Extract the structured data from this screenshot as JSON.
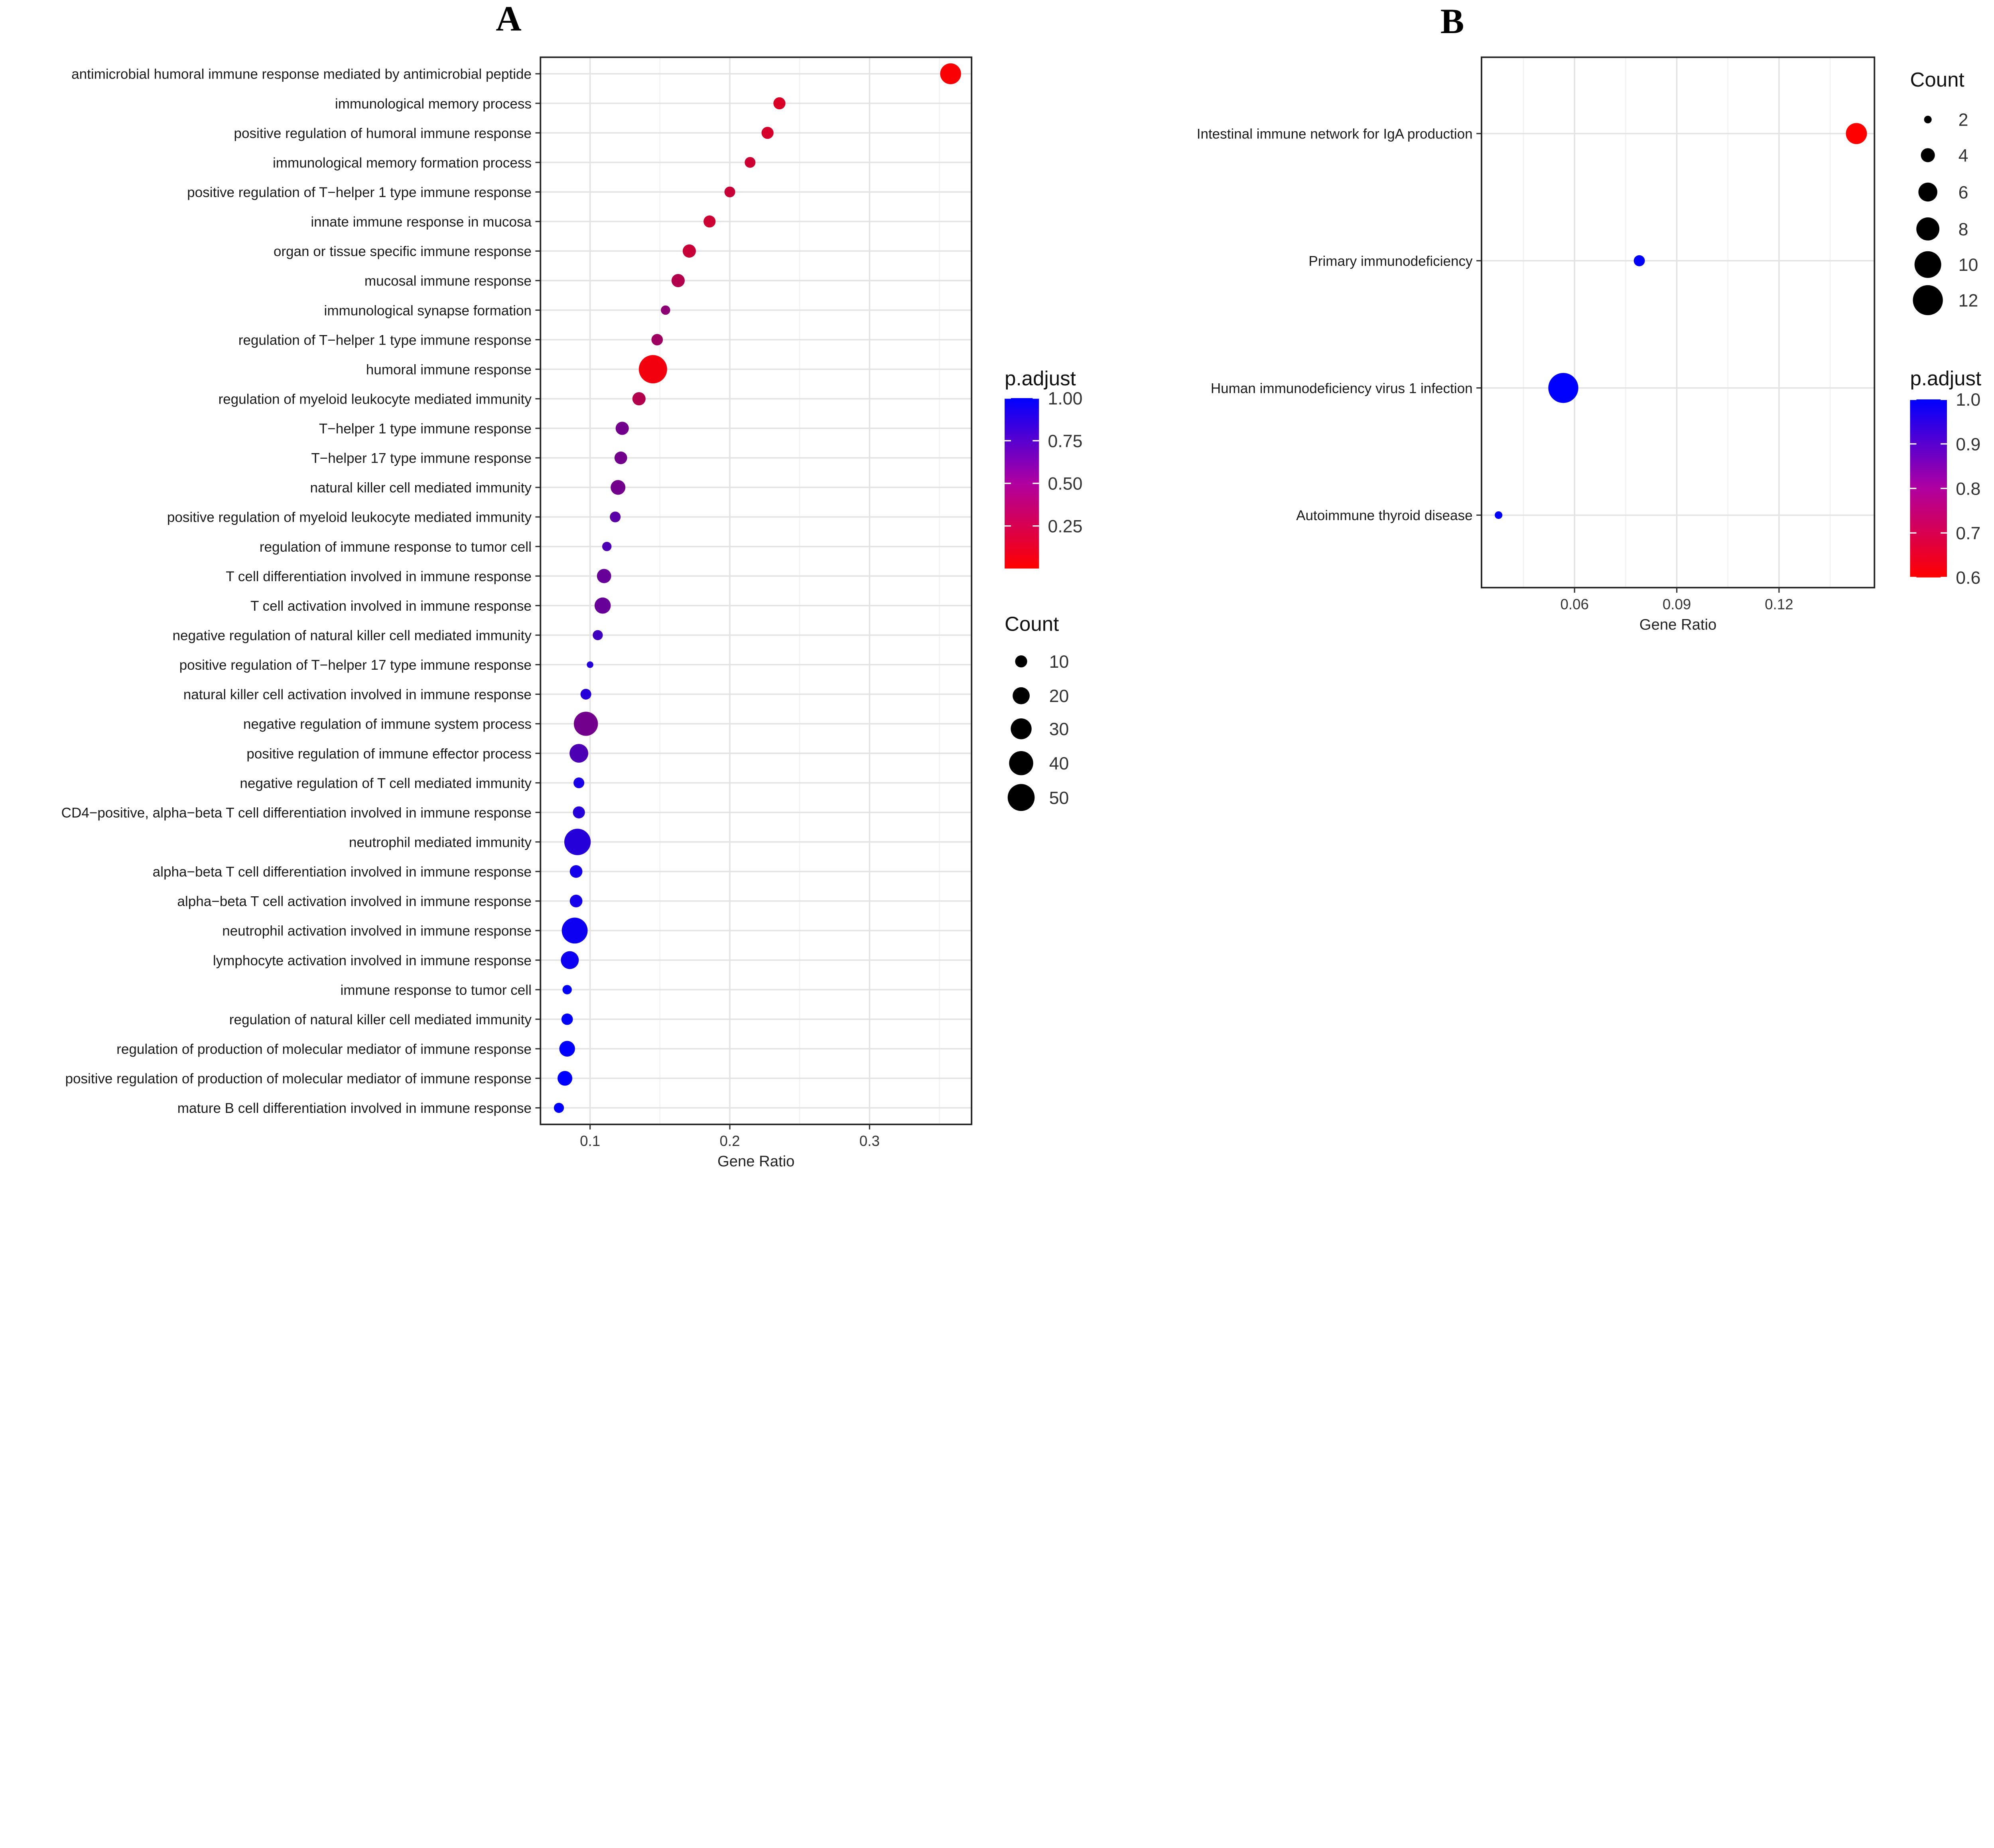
{
  "chart_data": [
    {
      "type": "scatter",
      "panel_label": "A",
      "xlabel": "Gene Ratio",
      "xlim": [
        0.0645,
        0.373
      ],
      "xticks": [
        0.1,
        0.2,
        0.3
      ],
      "xtick_labels": [
        "0.1",
        "0.2",
        "0.3"
      ],
      "grid": true,
      "color_legend": {
        "title": "p.adjust",
        "range": [
          0,
          1
        ],
        "low_color": "#ff0000",
        "high_color": "#0000ff",
        "ticks": [
          0.25,
          0.5,
          0.75,
          1.0
        ],
        "tick_labels": [
          "0.25",
          "0.50",
          "0.75",
          "1.00"
        ]
      },
      "size_legend": {
        "title": "Count",
        "values": [
          10,
          20,
          30,
          40,
          50
        ],
        "labels": [
          "10",
          "20",
          "30",
          "40",
          "50"
        ]
      },
      "legend_placement": "right",
      "points": [
        {
          "term": "antimicrobial humoral immune response mediated by antimicrobial peptide",
          "gene_ratio": 0.358,
          "count": 30,
          "p_adjust": 0.02
        },
        {
          "term": "immunological memory process",
          "gene_ratio": 0.2355,
          "count": 10,
          "p_adjust": 0.15
        },
        {
          "term": "positive regulation of humoral immune response",
          "gene_ratio": 0.227,
          "count": 10,
          "p_adjust": 0.17
        },
        {
          "term": "immunological memory formation process",
          "gene_ratio": 0.2145,
          "count": 8,
          "p_adjust": 0.2
        },
        {
          "term": "positive regulation of T−helper 1 type immune response",
          "gene_ratio": 0.2,
          "count": 8,
          "p_adjust": 0.22
        },
        {
          "term": "innate immune response in mucosa",
          "gene_ratio": 0.1855,
          "count": 10,
          "p_adjust": 0.2
        },
        {
          "term": "organ or tissue specific immune response",
          "gene_ratio": 0.171,
          "count": 12,
          "p_adjust": 0.22
        },
        {
          "term": "mucosal immune response",
          "gene_ratio": 0.163,
          "count": 12,
          "p_adjust": 0.3
        },
        {
          "term": "immunological synapse formation",
          "gene_ratio": 0.154,
          "count": 6,
          "p_adjust": 0.45
        },
        {
          "term": "regulation of T−helper 1 type immune response",
          "gene_ratio": 0.148,
          "count": 9,
          "p_adjust": 0.38
        },
        {
          "term": "humoral immune response",
          "gene_ratio": 0.145,
          "count": 55,
          "p_adjust": 0.05
        },
        {
          "term": "regulation of myeloid leukocyte mediated immunity",
          "gene_ratio": 0.135,
          "count": 12,
          "p_adjust": 0.3
        },
        {
          "term": "T−helper 1 type immune response",
          "gene_ratio": 0.123,
          "count": 12,
          "p_adjust": 0.55
        },
        {
          "term": "T−helper 17 type immune response",
          "gene_ratio": 0.122,
          "count": 11,
          "p_adjust": 0.55
        },
        {
          "term": "natural killer cell mediated immunity",
          "gene_ratio": 0.12,
          "count": 15,
          "p_adjust": 0.55
        },
        {
          "term": "positive regulation of myeloid leukocyte mediated immunity",
          "gene_ratio": 0.118,
          "count": 8,
          "p_adjust": 0.65
        },
        {
          "term": "regulation of immune response to tumor cell",
          "gene_ratio": 0.112,
          "count": 6,
          "p_adjust": 0.7
        },
        {
          "term": "T cell differentiation involved in immune response",
          "gene_ratio": 0.11,
          "count": 14,
          "p_adjust": 0.6
        },
        {
          "term": "T cell activation involved in immune response",
          "gene_ratio": 0.109,
          "count": 18,
          "p_adjust": 0.6
        },
        {
          "term": "negative regulation of natural killer cell mediated immunity",
          "gene_ratio": 0.1055,
          "count": 7,
          "p_adjust": 0.75
        },
        {
          "term": "positive regulation of T−helper 17 type immune response",
          "gene_ratio": 0.1,
          "count": 3,
          "p_adjust": 0.85
        },
        {
          "term": "natural killer cell activation involved in immune response",
          "gene_ratio": 0.097,
          "count": 8,
          "p_adjust": 0.85
        },
        {
          "term": "negative regulation of immune system process",
          "gene_ratio": 0.097,
          "count": 40,
          "p_adjust": 0.55
        },
        {
          "term": "positive regulation of immune effector process",
          "gene_ratio": 0.092,
          "count": 24,
          "p_adjust": 0.7
        },
        {
          "term": "negative regulation of T cell mediated immunity",
          "gene_ratio": 0.092,
          "count": 8,
          "p_adjust": 0.9
        },
        {
          "term": "CD4−positive, alpha−beta T cell differentiation involved in immune response",
          "gene_ratio": 0.092,
          "count": 10,
          "p_adjust": 0.85
        },
        {
          "term": "neutrophil mediated immunity",
          "gene_ratio": 0.091,
          "count": 48,
          "p_adjust": 0.85
        },
        {
          "term": "alpha−beta T cell differentiation involved in immune response",
          "gene_ratio": 0.09,
          "count": 11,
          "p_adjust": 0.92
        },
        {
          "term": "alpha−beta T cell activation involved in immune response",
          "gene_ratio": 0.09,
          "count": 11,
          "p_adjust": 0.92
        },
        {
          "term": "neutrophil activation involved in immune response",
          "gene_ratio": 0.089,
          "count": 46,
          "p_adjust": 0.95
        },
        {
          "term": "lymphocyte activation involved in immune response",
          "gene_ratio": 0.0855,
          "count": 22,
          "p_adjust": 0.95
        },
        {
          "term": "immune response to tumor cell",
          "gene_ratio": 0.0836,
          "count": 6,
          "p_adjust": 1.0
        },
        {
          "term": "regulation of natural killer cell mediated immunity",
          "gene_ratio": 0.0836,
          "count": 9,
          "p_adjust": 1.0
        },
        {
          "term": "regulation of production of molecular mediator of immune response",
          "gene_ratio": 0.0836,
          "count": 17,
          "p_adjust": 1.0
        },
        {
          "term": "positive regulation of production of molecular mediator of immune response",
          "gene_ratio": 0.082,
          "count": 15,
          "p_adjust": 1.0
        },
        {
          "term": "mature B cell differentiation involved in immune response",
          "gene_ratio": 0.0777,
          "count": 7,
          "p_adjust": 1.0
        }
      ]
    },
    {
      "type": "scatter",
      "panel_label": "B",
      "xlabel": "Gene Ratio",
      "xlim": [
        0.0327,
        0.148
      ],
      "xticks": [
        0.06,
        0.09,
        0.12
      ],
      "xtick_labels": [
        "0.06",
        "0.09",
        "0.12"
      ],
      "grid": true,
      "color_legend": {
        "title": "p.adjust",
        "range": [
          0.6,
          1.0
        ],
        "low_color": "#ff0000",
        "high_color": "#0000ff",
        "ticks": [
          0.6,
          0.7,
          0.8,
          0.9,
          1.0
        ],
        "tick_labels": [
          "0.6",
          "0.7",
          "0.8",
          "0.9",
          "1.0"
        ]
      },
      "size_legend": {
        "title": "Count",
        "values": [
          2,
          4,
          6,
          8,
          10,
          12
        ],
        "labels": [
          "2",
          "4",
          "6",
          "8",
          "10",
          "12"
        ]
      },
      "legend_placement": "right",
      "points": [
        {
          "term": "Intestinal immune network for IgA production",
          "gene_ratio": 0.1427,
          "count": 7,
          "p_adjust": 0.6
        },
        {
          "term": "Primary immunodeficiency",
          "gene_ratio": 0.079,
          "count": 3,
          "p_adjust": 1.0
        },
        {
          "term": "Human immunodeficiency virus 1 infection",
          "gene_ratio": 0.0567,
          "count": 12,
          "p_adjust": 1.0
        },
        {
          "term": "Autoimmune thyroid disease",
          "gene_ratio": 0.0377,
          "count": 2,
          "p_adjust": 1.0
        }
      ]
    }
  ]
}
